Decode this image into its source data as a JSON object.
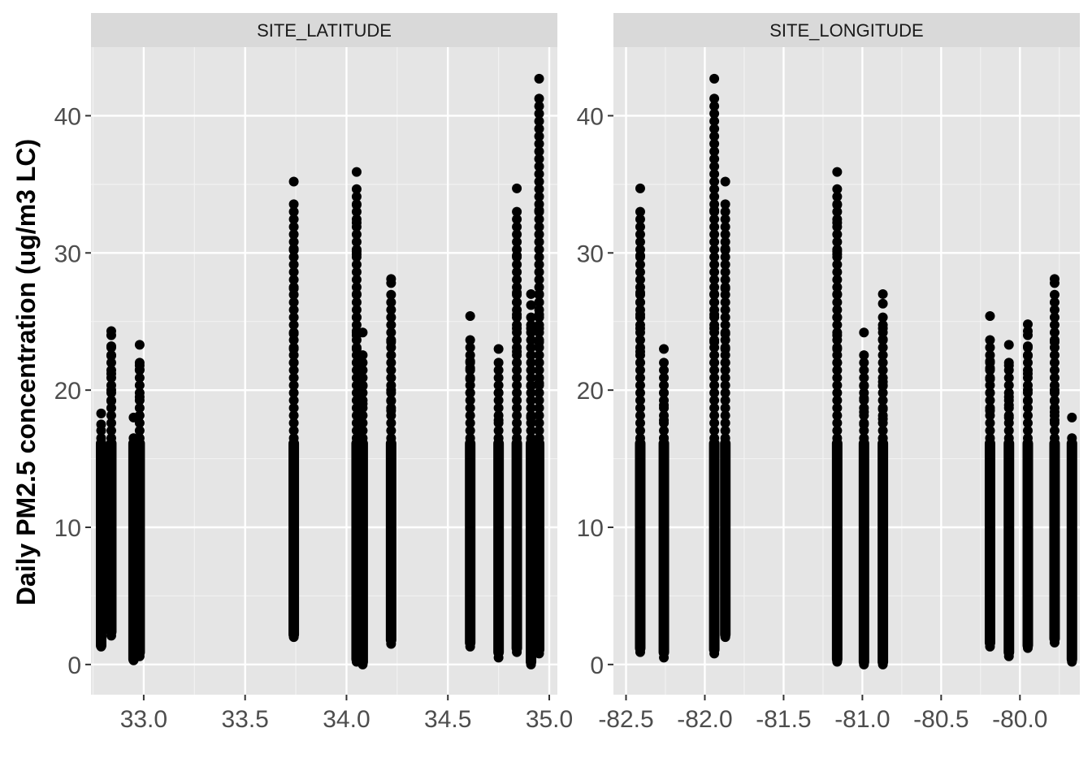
{
  "chart_data": {
    "type": "scatter",
    "ylabel": "Daily PM2.5 concentration (ug/m3 LC)",
    "ylim": [
      -2.2,
      45
    ],
    "yticks": [
      0,
      10,
      20,
      30,
      40
    ],
    "grid": true,
    "point_color": "#000000",
    "panel_background": "#e5e5e5",
    "strip_background": "#d9d9d9",
    "panels": [
      {
        "strip": "SITE_LATITUDE",
        "xlim": [
          32.74,
          35.04
        ],
        "xticks": [
          33.0,
          33.5,
          34.0,
          34.5,
          35.0
        ],
        "xtick_labels": [
          "33.0",
          "33.5",
          "34.0",
          "34.5",
          "35.0"
        ],
        "columns": [
          {
            "x": 32.79,
            "min": 1.0,
            "max": 18.5,
            "extra": [
              1.3,
              1.8,
              17.5,
              18.3
            ]
          },
          {
            "x": 32.84,
            "min": 2.0,
            "max": 24.8,
            "extra": [
              2.1,
              19.2,
              20.0,
              21.2,
              22.5,
              23.2,
              24.0,
              24.3
            ]
          },
          {
            "x": 32.95,
            "min": 0.0,
            "max": 18.0,
            "extra": [
              0.3,
              15.7,
              18.0
            ]
          },
          {
            "x": 32.98,
            "min": 0.5,
            "max": 23.3,
            "extra": [
              0.6,
              1.0,
              19.5,
              21.5,
              21.8,
              23.3
            ]
          },
          {
            "x": 33.74,
            "min": 1.8,
            "max": 35.2,
            "extra": [
              2.0,
              22.0,
              23.0,
              24.1,
              27.4,
              30.2,
              30.3,
              35.2
            ]
          },
          {
            "x": 34.05,
            "min": 0.0,
            "max": 35.9,
            "extra": [
              0.2,
              22.0,
              23.0,
              24.0,
              24.3,
              25.3,
              27.0,
              29.9,
              30.1,
              32.2,
              33.5,
              35.9
            ]
          },
          {
            "x": 34.08,
            "min": -0.2,
            "max": 24.2,
            "extra": [
              0.0,
              19.0,
              20.3,
              24.2
            ]
          },
          {
            "x": 34.22,
            "min": 1.4,
            "max": 28.2,
            "extra": [
              1.5,
              18.5,
              19.2,
              20.0,
              23.5,
              27.8,
              28.1
            ]
          },
          {
            "x": 34.61,
            "min": 1.2,
            "max": 25.4,
            "extra": [
              1.3,
              19.8,
              20.8,
              21.6,
              22.1,
              25.4
            ]
          },
          {
            "x": 34.75,
            "min": 0.5,
            "max": 23.0,
            "extra": [
              0.5,
              14.0,
              15.2,
              16.5,
              17.8,
              19.8,
              22.0,
              23.0
            ]
          },
          {
            "x": 34.84,
            "min": 0.8,
            "max": 34.7,
            "extra": [
              0.9,
              22.0,
              22.8,
              24.5,
              25.5,
              26.4,
              27.1,
              29.8,
              34.7
            ]
          },
          {
            "x": 34.91,
            "min": -0.2,
            "max": 27.0,
            "extra": [
              0.0,
              18.0,
              20.3,
              24.5,
              26.2,
              27.0
            ]
          },
          {
            "x": 34.95,
            "min": 0.7,
            "max": 42.7,
            "extra": [
              0.8,
              20.5,
              22.0,
              23.5,
              24.5,
              25.5,
              26.4,
              27.0,
              33.1,
              42.7
            ]
          }
        ]
      },
      {
        "strip": "SITE_LONGITUDE",
        "xlim": [
          -82.58,
          -79.62
        ],
        "xticks": [
          -82.5,
          -82.0,
          -81.5,
          -81.0,
          -80.5,
          -80.0
        ],
        "xtick_labels": [
          "-82.5",
          "-82.0",
          "-81.5",
          "-81.0",
          "-80.5",
          "-80.0"
        ],
        "columns": [
          {
            "x": -82.41,
            "min": 0.8,
            "max": 34.7,
            "extra": [
              0.9,
              22.0,
              22.8,
              24.5,
              25.5,
              26.4,
              27.1,
              29.8,
              34.7
            ]
          },
          {
            "x": -82.26,
            "min": 0.5,
            "max": 23.0,
            "extra": [
              0.5,
              12.3,
              14.0,
              15.2,
              16.5,
              17.8,
              18.9,
              19.8,
              22.0,
              23.0
            ]
          },
          {
            "x": -81.94,
            "min": 0.7,
            "max": 42.7,
            "extra": [
              0.8,
              22.0,
              23.5,
              24.5,
              25.5,
              26.4,
              27.0,
              33.1,
              42.7
            ]
          },
          {
            "x": -81.87,
            "min": 1.8,
            "max": 35.2,
            "extra": [
              2.0,
              22.0,
              23.0,
              24.1,
              27.4,
              30.2,
              30.3,
              35.2
            ]
          },
          {
            "x": -81.16,
            "min": 0.0,
            "max": 35.9,
            "extra": [
              0.2,
              22.0,
              23.0,
              24.0,
              25.3,
              27.0,
              29.9,
              30.1,
              32.2,
              33.5,
              35.9
            ]
          },
          {
            "x": -80.99,
            "min": -0.2,
            "max": 24.2,
            "extra": [
              0.0,
              17.5,
              18.4,
              19.4,
              20.3,
              24.2
            ]
          },
          {
            "x": -80.87,
            "min": -0.2,
            "max": 27.0,
            "extra": [
              0.0,
              16.5,
              17.9,
              18.6,
              20.3,
              20.6,
              23.7,
              24.5,
              26.3,
              27.0
            ]
          },
          {
            "x": -80.19,
            "min": 1.2,
            "max": 25.4,
            "extra": [
              1.3,
              18.5,
              19.8,
              20.8,
              21.6,
              22.1,
              25.4
            ]
          },
          {
            "x": -80.07,
            "min": 0.5,
            "max": 23.3,
            "extra": [
              0.6,
              0.9,
              14.8,
              18.0,
              18.9,
              19.5,
              21.8,
              23.3
            ]
          },
          {
            "x": -79.95,
            "min": 1.0,
            "max": 24.8,
            "extra": [
              1.2,
              19.2,
              20.0,
              21.2,
              22.5,
              23.2,
              24.0,
              24.3,
              24.8
            ]
          },
          {
            "x": -79.78,
            "min": 1.5,
            "max": 28.2,
            "extra": [
              1.6,
              17.8,
              18.4,
              19.2,
              20.0,
              23.5,
              27.8,
              28.1
            ]
          },
          {
            "x": -79.67,
            "min": 0.0,
            "max": 18.0,
            "extra": [
              0.2,
              0.6,
              14.8,
              15.3,
              15.8,
              18.0
            ]
          }
        ]
      }
    ]
  }
}
